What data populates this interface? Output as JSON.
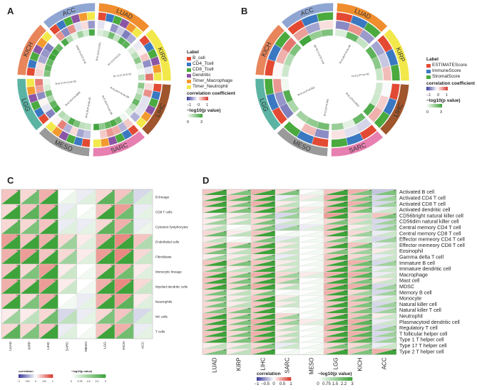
{
  "panels": {
    "A": {
      "letter": "A",
      "sectors": [
        "ACC",
        "LUAD",
        "KIRP",
        "LIHC",
        "SARC",
        "MESO",
        "LGG",
        "KICH"
      ],
      "sector_colors": [
        "#8fa6d2",
        "#f08d2e",
        "#f2e84a",
        "#a0552c",
        "#e77fb0",
        "#9a9a9a",
        "#5bb3a3",
        "#e8855b"
      ],
      "legend": {
        "label_title": "Label",
        "labels": [
          "B_cell",
          "CD4_Tcell",
          "CD8_Tcell",
          "Dendritic",
          "Timer_Macrophage",
          "Timer_Neutrophil"
        ],
        "label_colors": [
          "#e34a33",
          "#3b78c2",
          "#4aaa3e",
          "#8b55a6",
          "#f39a2f",
          "#f2e84a"
        ],
        "corr_title": "correlation coefficient",
        "corr_ticks": [
          "−1",
          "0",
          "1"
        ],
        "log_title": "−log10(p value)",
        "log_ticks": [
          "0",
          "3"
        ]
      },
      "annotations": [
        "R=0.15,P=0.0004",
        "R=0.14,P=0.001",
        "R=-0.3,P=0.01",
        "R=-0.27,P=0.03",
        "R=0.24,P=6.4e-08",
        "R=0.24,P=3.4e-08",
        "R=0.26,P=9.6e-05",
        "R=0.19,P=0.0002",
        "R=0.27,P=2.3e-05"
      ]
    },
    "B": {
      "letter": "B",
      "sectors": [
        "ACC",
        "LUAD",
        "KIRP",
        "LIHC",
        "SARC",
        "MESO",
        "LGG",
        "KICH"
      ],
      "sector_colors": [
        "#8fa6d2",
        "#f08d2e",
        "#f2e84a",
        "#a0552c",
        "#e77fb0",
        "#9a9a9a",
        "#5bb3a3",
        "#e8855b"
      ],
      "legend": {
        "label_title": "Label",
        "labels": [
          "ESTIMATEScore",
          "ImmuneScore",
          "StromalScore"
        ],
        "label_colors": [
          "#e34a33",
          "#3b78c2",
          "#4aaa3e"
        ],
        "corr_title": "correlation coefficient",
        "corr_ticks": [
          "−1",
          "0",
          "1"
        ],
        "log_title": "−log10(p value)",
        "log_ticks": [
          "0",
          "3"
        ]
      },
      "annotations": [
        "R=0.21,P=1.5e-06",
        "R=0.26,P=3.5e-08",
        "R=0.2,P=1e-05",
        "R=0.2,P=0.0022",
        "R=0.3,P=0.004",
        "R=0.14,P=0.002"
      ]
    },
    "C": {
      "letter": "C",
      "legend": {
        "corr_title": "correlation",
        "corr_ticks": [
          "−1",
          "−0.5",
          "0",
          "0.5",
          "1"
        ],
        "log_title": "−log10(p value)",
        "log_ticks": [
          "0",
          "0.75",
          "1.5",
          "2.2",
          "3"
        ]
      }
    },
    "D": {
      "letter": "D",
      "legend": {
        "corr_title": "correlation",
        "corr_ticks": [
          "−1",
          "−0.5",
          "0",
          "0.5",
          "1"
        ],
        "log_title": "−log10(p value)",
        "log_ticks": [
          "0",
          "0.75",
          "1.5",
          "2.2",
          "3"
        ]
      }
    }
  },
  "chart_data": [
    {
      "type": "heatmap",
      "panel": "C",
      "columns": [
        "LUAD",
        "KIRP",
        "LIHC",
        "SARC",
        "MESO",
        "LGG",
        "KICH",
        "ACC"
      ],
      "rows": [
        "B lineage",
        "CD8 T cells",
        "Cytotoxic lymphocytes",
        "Endothelial cells",
        "Fibroblasts",
        "Monocytic lineage",
        "Myeloid dendritic cells",
        "Neutrophils",
        "NK cells",
        "T cells"
      ],
      "correlation": [
        [
          0.3,
          0.2,
          0.4,
          0.0,
          -0.1,
          0.2,
          0.3,
          -0.2
        ],
        [
          0.2,
          0.3,
          0.4,
          -0.1,
          0.0,
          0.3,
          0.5,
          -0.1
        ],
        [
          0.2,
          0.2,
          0.3,
          -0.1,
          -0.1,
          0.2,
          0.4,
          -0.1
        ],
        [
          0.5,
          0.3,
          0.4,
          0.2,
          0.1,
          0.4,
          0.6,
          0.3
        ],
        [
          0.4,
          0.5,
          0.3,
          0.2,
          0.1,
          0.5,
          0.6,
          0.2
        ],
        [
          0.3,
          0.2,
          0.5,
          0.1,
          0.0,
          0.3,
          0.4,
          0.1
        ],
        [
          0.4,
          0.3,
          0.5,
          0.1,
          0.0,
          0.4,
          0.6,
          0.2
        ],
        [
          0.3,
          0.2,
          0.4,
          0.0,
          -0.1,
          0.4,
          0.5,
          0.1
        ],
        [
          0.1,
          0.1,
          0.2,
          -0.2,
          -0.1,
          0.2,
          0.3,
          -0.2
        ],
        [
          0.2,
          0.2,
          0.3,
          -0.1,
          0.0,
          0.3,
          0.4,
          -0.1
        ]
      ],
      "neglog10p": [
        [
          3,
          2.2,
          3,
          0.3,
          0.5,
          2.5,
          1.5,
          0.6
        ],
        [
          3,
          2.5,
          3,
          0.5,
          0.2,
          3,
          2.2,
          0.4
        ],
        [
          2.5,
          2,
          3,
          0.5,
          0.4,
          2.5,
          2,
          0.3
        ],
        [
          3,
          3,
          3,
          1.5,
          0.5,
          3,
          3,
          1.2
        ],
        [
          3,
          3,
          3,
          1.5,
          0.5,
          3,
          3,
          0.8
        ],
        [
          3,
          2,
          3,
          0.8,
          0.2,
          3,
          2.2,
          0.5
        ],
        [
          3,
          3,
          3,
          0.8,
          0.2,
          3,
          3,
          0.8
        ],
        [
          3,
          2,
          3,
          0.2,
          0.4,
          3,
          2.5,
          0.5
        ],
        [
          1.5,
          1,
          2.2,
          1,
          0.4,
          2,
          1.5,
          0.6
        ],
        [
          2.5,
          2,
          3,
          0.5,
          0.2,
          3,
          2.2,
          0.4
        ]
      ],
      "xlabel": "",
      "ylabel": ""
    },
    {
      "type": "heatmap",
      "panel": "D",
      "columns": [
        "LUAD",
        "KIRP",
        "LIHC",
        "SARC",
        "MESO",
        "LGG",
        "KICH",
        "ACC"
      ],
      "rows": [
        "Activated B cell",
        "Activated CD4 T cell",
        "Activated CD8 T cell",
        "Activated dendritic cell",
        "CD56bright natural killer cell",
        "CD56dim natural killer cell",
        "Central memory CD4 T cell",
        "Central memory CD8 T cell",
        "Effector memeory CD4 T cell",
        "Effector memeory CD8 T cell",
        "Eosinophil",
        "Gamma delta T cell",
        "Immature  B cell",
        "Immature dendritic cell",
        "Macrophage",
        "Mast cell",
        "MDSC",
        "Memory B cell",
        "Monocyte",
        "Natural killer cell",
        "Natural killer T cell",
        "Neutrophil",
        "Plasmacytoid dendritic cell",
        "Regulatory T cell",
        "T follicular helper cell",
        "Type 1 T helper cell",
        "Type 17 T helper cell",
        "Type 2 T helper cell"
      ],
      "correlation": [
        [
          0.3,
          0.2,
          0.4,
          0.2,
          0.0,
          0.3,
          0.4,
          -0.3
        ],
        [
          0.2,
          0.3,
          0.3,
          -0.1,
          0.1,
          0.4,
          0.3,
          -0.2
        ],
        [
          0.3,
          0.2,
          0.4,
          0.1,
          0.0,
          0.3,
          0.4,
          -0.2
        ],
        [
          0.2,
          0.2,
          0.3,
          0.2,
          0.1,
          0.4,
          0.3,
          -0.1
        ],
        [
          0.1,
          0.1,
          0.2,
          -0.2,
          0.0,
          0.5,
          0.2,
          0.3
        ],
        [
          0.1,
          0.1,
          0.2,
          -0.1,
          0.0,
          0.2,
          0.2,
          -0.2
        ],
        [
          0.1,
          0.0,
          0.2,
          -0.2,
          -0.1,
          0.3,
          0.1,
          -0.2
        ],
        [
          0.2,
          0.1,
          0.3,
          0.0,
          0.0,
          0.3,
          0.2,
          -0.1
        ],
        [
          0.1,
          0.0,
          0.2,
          -0.1,
          0.0,
          0.2,
          0.1,
          -0.2
        ],
        [
          0.2,
          0.2,
          0.3,
          0.1,
          0.0,
          0.3,
          0.3,
          -0.1
        ],
        [
          0.2,
          0.1,
          0.3,
          0.1,
          0.0,
          0.2,
          0.2,
          0.1
        ],
        [
          0.1,
          0.1,
          0.2,
          -0.1,
          0.0,
          0.3,
          0.2,
          -0.1
        ],
        [
          0.3,
          0.2,
          0.3,
          0.1,
          0.0,
          0.3,
          0.4,
          -0.2
        ],
        [
          0.2,
          0.1,
          0.3,
          0.1,
          0.0,
          0.3,
          0.3,
          -0.1
        ],
        [
          0.3,
          0.2,
          0.4,
          0.2,
          0.1,
          0.4,
          0.4,
          -0.1
        ],
        [
          0.3,
          0.2,
          0.3,
          0.2,
          0.0,
          0.3,
          0.3,
          0.1
        ],
        [
          0.3,
          0.2,
          0.4,
          0.1,
          0.0,
          0.4,
          0.4,
          -0.2
        ],
        [
          0.2,
          0.1,
          0.2,
          0.0,
          0.0,
          0.4,
          0.2,
          -0.2
        ],
        [
          0.2,
          0.1,
          0.3,
          0.1,
          0.0,
          0.3,
          0.3,
          -0.1
        ],
        [
          0.2,
          0.1,
          0.3,
          0.1,
          0.0,
          0.3,
          0.3,
          -0.2
        ],
        [
          0.2,
          0.2,
          0.3,
          0.0,
          0.0,
          0.3,
          0.3,
          -0.2
        ],
        [
          0.3,
          0.2,
          0.3,
          0.2,
          0.0,
          0.3,
          0.3,
          0.1
        ],
        [
          0.3,
          0.2,
          0.4,
          0.2,
          0.1,
          0.3,
          0.4,
          -0.1
        ],
        [
          0.3,
          0.2,
          0.4,
          0.1,
          0.0,
          0.4,
          0.4,
          -0.2
        ],
        [
          0.3,
          0.2,
          0.4,
          0.1,
          0.0,
          0.3,
          0.4,
          -0.2
        ],
        [
          0.3,
          0.2,
          0.4,
          0.1,
          0.0,
          0.4,
          0.4,
          -0.2
        ],
        [
          0.1,
          0.1,
          0.2,
          -0.1,
          0.0,
          0.2,
          0.2,
          -0.1
        ],
        [
          0.2,
          0.1,
          0.3,
          0.0,
          0.0,
          0.3,
          0.3,
          0.4
        ]
      ],
      "neglog10p": [
        [
          3,
          2,
          3,
          2,
          0.3,
          3,
          2,
          2
        ],
        [
          3,
          2.5,
          3,
          1,
          0.5,
          3,
          2,
          1.5
        ],
        [
          3,
          2,
          3,
          1,
          0.2,
          3,
          2.2,
          1.5
        ],
        [
          3,
          2,
          3,
          1.5,
          0.4,
          3,
          2,
          0.8
        ],
        [
          1.5,
          1,
          2,
          1.5,
          0.2,
          3,
          1,
          2
        ],
        [
          1.5,
          1,
          2,
          0.8,
          0.2,
          2,
          1,
          1.5
        ],
        [
          1,
          0.2,
          2,
          1.5,
          0.5,
          3,
          0.8,
          1.5
        ],
        [
          2.2,
          1,
          3,
          0.2,
          0.2,
          3,
          1.5,
          0.8
        ],
        [
          1,
          0.2,
          2,
          0.8,
          0.2,
          2,
          0.8,
          1.5
        ],
        [
          2.5,
          2,
          3,
          0.8,
          0.2,
          3,
          2,
          0.8
        ],
        [
          2,
          1,
          3,
          0.8,
          0.2,
          2,
          1.5,
          0.8
        ],
        [
          1.5,
          1,
          2,
          0.8,
          0.2,
          3,
          1.5,
          0.8
        ],
        [
          3,
          2,
          3,
          0.8,
          0.2,
          3,
          2.2,
          1.5
        ],
        [
          2,
          1,
          3,
          0.8,
          0.2,
          3,
          2,
          0.8
        ],
        [
          3,
          2,
          3,
          1.5,
          0.5,
          3,
          2.5,
          0.8
        ],
        [
          3,
          2,
          3,
          1.5,
          0.2,
          3,
          2,
          0.8
        ],
        [
          3,
          2,
          3,
          1,
          0.2,
          3,
          2.5,
          1.5
        ],
        [
          2,
          1,
          2,
          0.2,
          0.2,
          3,
          1.5,
          1.5
        ],
        [
          2,
          1,
          3,
          0.8,
          0.2,
          3,
          2,
          0.8
        ],
        [
          2,
          1,
          3,
          0.8,
          0.2,
          3,
          2,
          1.5
        ],
        [
          2,
          2,
          3,
          0.2,
          0.2,
          3,
          2,
          1.5
        ],
        [
          3,
          2,
          3,
          1.5,
          0.2,
          3,
          2,
          0.8
        ],
        [
          3,
          2,
          3,
          1.5,
          0.5,
          3,
          2.5,
          0.8
        ],
        [
          3,
          2,
          3,
          1,
          0.2,
          3,
          2.5,
          1.5
        ],
        [
          3,
          2,
          3,
          1,
          0.2,
          3,
          2.5,
          1.5
        ],
        [
          3,
          2,
          3,
          1,
          0.2,
          3,
          2.5,
          1.5
        ],
        [
          1,
          1,
          2,
          0.8,
          0.2,
          2,
          1.5,
          0.8
        ],
        [
          2,
          1,
          3,
          0.2,
          0.2,
          3,
          2,
          3
        ]
      ],
      "xlabel": "",
      "ylabel": ""
    }
  ]
}
